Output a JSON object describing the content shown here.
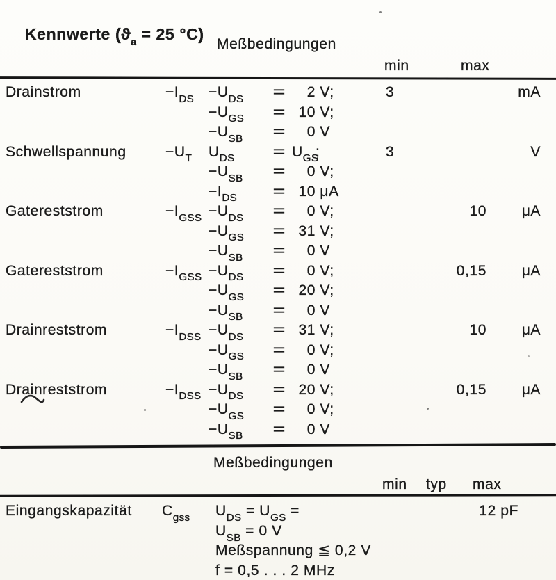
{
  "paper": "#fbfaf6",
  "ink": "#1a1a1a",
  "title_parts": [
    {
      "t": "Kennwerte ("
    },
    {
      "t": "ϑ"
    },
    {
      "s": "a"
    },
    {
      "t": " = 25 °C)"
    }
  ],
  "table1": {
    "cond_header": "Meßbedingungen",
    "col_min": "min",
    "col_max": "max",
    "rows": [
      {
        "name": "Drainstrom",
        "symbol": [
          {
            "t": "−I"
          },
          {
            "s": "DS"
          }
        ],
        "lines": [
          {
            "var": [
              {
                "t": "−U"
              },
              {
                "s": "DS"
              }
            ],
            "eq": "=",
            "num": [
              {
                "t": "2"
              }
            ],
            "tail": [
              {
                "t": " V;"
              }
            ]
          },
          {
            "var": [
              {
                "t": "−U"
              },
              {
                "s": "GS"
              }
            ],
            "eq": "=",
            "num": [
              {
                "t": "10"
              }
            ],
            "tail": [
              {
                "t": " V;"
              }
            ]
          },
          {
            "var": [
              {
                "t": "−U"
              },
              {
                "s": "SB"
              }
            ],
            "eq": "=",
            "num": [
              {
                "t": "0"
              }
            ],
            "tail": [
              {
                "t": " V"
              }
            ]
          }
        ],
        "min": "3",
        "max": "",
        "unit": "mA"
      },
      {
        "name": "Schwellspannung",
        "symbol": [
          {
            "t": "−U"
          },
          {
            "s": "T"
          }
        ],
        "lines": [
          {
            "var": [
              {
                "t": "U"
              },
              {
                "s": "DS"
              }
            ],
            "eq": "=",
            "num": [
              {
                "t": "U"
              },
              {
                "s": "GS"
              }
            ],
            "tail": [
              {
                "t": ";"
              }
            ]
          },
          {
            "var": [
              {
                "t": "−U"
              },
              {
                "s": "SB"
              }
            ],
            "eq": "=",
            "num": [
              {
                "t": "0"
              }
            ],
            "tail": [
              {
                "t": " V;"
              }
            ]
          },
          {
            "var": [
              {
                "t": "−I"
              },
              {
                "s": "DS"
              }
            ],
            "eq": "=",
            "num": [
              {
                "t": "10"
              }
            ],
            "tail": [
              {
                "t": " μA"
              }
            ]
          }
        ],
        "min": "3",
        "max": "",
        "unit": "V"
      },
      {
        "name": "Gatereststrom",
        "symbol": [
          {
            "t": "−I"
          },
          {
            "s": "GSS"
          }
        ],
        "lines": [
          {
            "var": [
              {
                "t": "−U"
              },
              {
                "s": "DS"
              }
            ],
            "eq": "=",
            "num": [
              {
                "t": "0"
              }
            ],
            "tail": [
              {
                "t": " V;"
              }
            ]
          },
          {
            "var": [
              {
                "t": "−U"
              },
              {
                "s": "GS"
              }
            ],
            "eq": "=",
            "num": [
              {
                "t": "31"
              }
            ],
            "tail": [
              {
                "t": " V;"
              }
            ]
          },
          {
            "var": [
              {
                "t": "−U"
              },
              {
                "s": "SB"
              }
            ],
            "eq": "=",
            "num": [
              {
                "t": "0"
              }
            ],
            "tail": [
              {
                "t": " V"
              }
            ]
          }
        ],
        "min": "",
        "max": "10",
        "unit": "μA"
      },
      {
        "name": "Gatereststrom",
        "symbol": [
          {
            "t": "−I"
          },
          {
            "s": "GSS"
          }
        ],
        "lines": [
          {
            "var": [
              {
                "t": "−U"
              },
              {
                "s": "DS"
              }
            ],
            "eq": "=",
            "num": [
              {
                "t": "0"
              }
            ],
            "tail": [
              {
                "t": " V;"
              }
            ]
          },
          {
            "var": [
              {
                "t": "−U"
              },
              {
                "s": "GS"
              }
            ],
            "eq": "=",
            "num": [
              {
                "t": "20"
              }
            ],
            "tail": [
              {
                "t": " V;"
              }
            ]
          },
          {
            "var": [
              {
                "t": "−U"
              },
              {
                "s": "SB"
              }
            ],
            "eq": "=",
            "num": [
              {
                "t": "0"
              }
            ],
            "tail": [
              {
                "t": " V"
              }
            ]
          }
        ],
        "min": "",
        "max": "0,15",
        "unit": "μA"
      },
      {
        "name": "Drainreststrom",
        "symbol": [
          {
            "t": "−I"
          },
          {
            "s": "DSS"
          }
        ],
        "lines": [
          {
            "var": [
              {
                "t": "−U"
              },
              {
                "s": "DS"
              }
            ],
            "eq": "=",
            "num": [
              {
                "t": "31"
              }
            ],
            "tail": [
              {
                "t": " V;"
              }
            ]
          },
          {
            "var": [
              {
                "t": "−U"
              },
              {
                "s": "GS"
              }
            ],
            "eq": "=",
            "num": [
              {
                "t": "0"
              }
            ],
            "tail": [
              {
                "t": " V;"
              }
            ]
          },
          {
            "var": [
              {
                "t": "−U"
              },
              {
                "s": "SB"
              }
            ],
            "eq": "=",
            "num": [
              {
                "t": "0"
              }
            ],
            "tail": [
              {
                "t": " V"
              }
            ]
          }
        ],
        "min": "",
        "max": "10",
        "unit": "μA"
      },
      {
        "name": "Drainreststrom",
        "symbol": [
          {
            "t": "−I"
          },
          {
            "s": "DSS"
          }
        ],
        "lines": [
          {
            "var": [
              {
                "t": "−U"
              },
              {
                "s": "DS"
              }
            ],
            "eq": "=",
            "num": [
              {
                "t": "20"
              }
            ],
            "tail": [
              {
                "t": " V;"
              }
            ]
          },
          {
            "var": [
              {
                "t": "−U"
              },
              {
                "s": "GS"
              }
            ],
            "eq": "=",
            "num": [
              {
                "t": "0"
              }
            ],
            "tail": [
              {
                "t": " V;"
              }
            ]
          },
          {
            "var": [
              {
                "t": "−U"
              },
              {
                "s": "SB"
              }
            ],
            "eq": "=",
            "num": [
              {
                "t": "0"
              }
            ],
            "tail": [
              {
                "t": " V"
              }
            ]
          }
        ],
        "min": "",
        "max": "0,15",
        "unit": "μA"
      }
    ]
  },
  "table2": {
    "cond_header": "Meßbedingungen",
    "col_min": "min",
    "col_typ": "typ",
    "col_max": "max",
    "row": {
      "name": "Eingangskapazität",
      "symbol": [
        {
          "t": "C"
        },
        {
          "s": "gss"
        }
      ],
      "lines": [
        [
          {
            "t": "U"
          },
          {
            "s": "DS"
          },
          {
            "t": " = U"
          },
          {
            "s": "GS"
          },
          {
            "t": " ="
          }
        ],
        [
          {
            "t": "U"
          },
          {
            "s": "SB"
          },
          {
            "t": " = 0 V"
          }
        ],
        [
          {
            "t": "Meßspannung ≦ 0,2 V"
          }
        ],
        [
          {
            "t": "f = 0,5 . . . 2 MHz"
          }
        ]
      ],
      "max": "12 pF"
    }
  }
}
